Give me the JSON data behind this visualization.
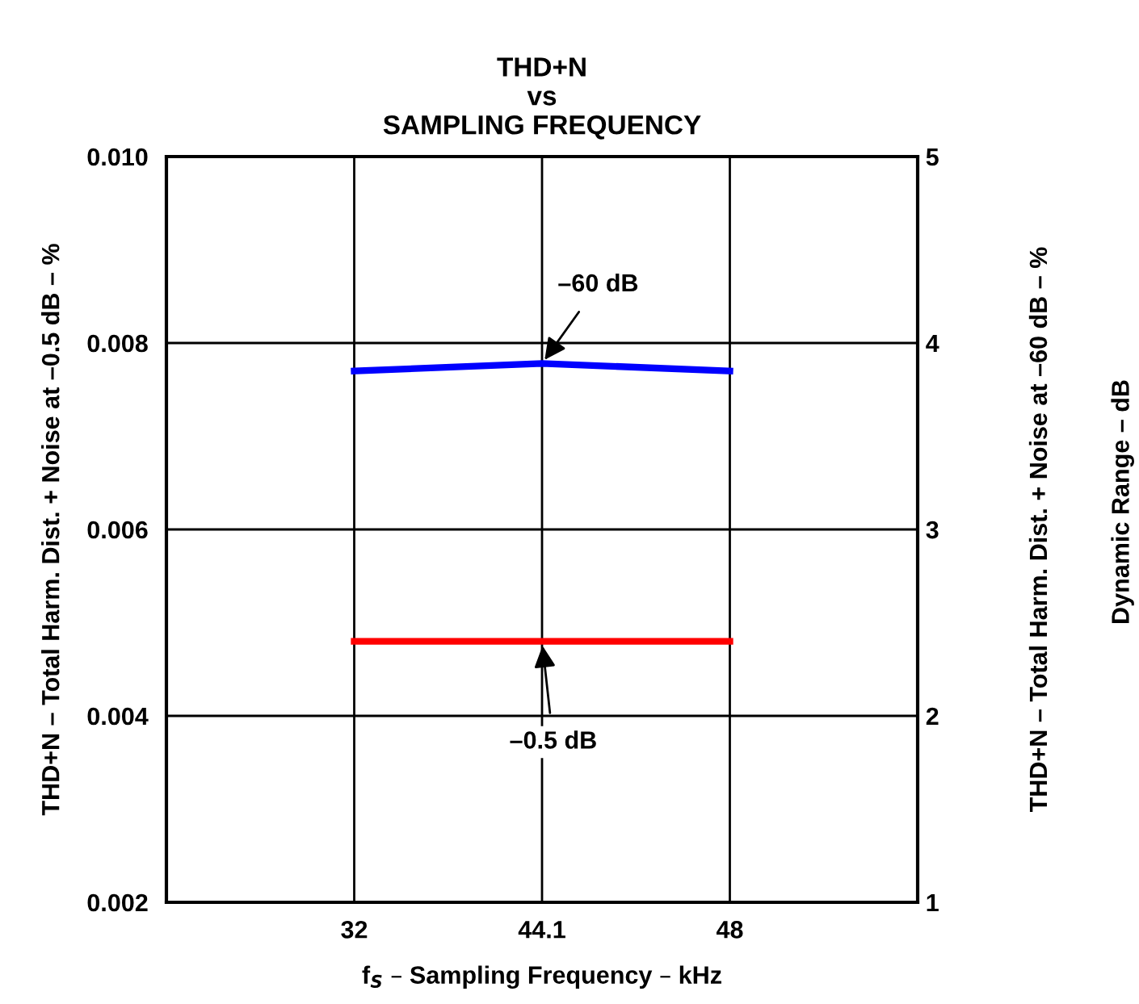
{
  "chart_data": {
    "type": "line",
    "title": "THD+N\nvs\nSAMPLING FREQUENCY",
    "xlabel": "f$_{S}$ – Sampling Frequency – kHz",
    "ylabel": "THD+N – Total Harm. Dist. + Noise at –0.5 dB – %",
    "y2label": "THD+N – Total Harm. Dist. + Noise at –60 dB – %",
    "categories": [
      "32",
      "44.1",
      "48"
    ],
    "series": [
      {
        "color": "#0000ff",
        "values": [
          0.0077,
          0.00778,
          0.0077
        ]
      },
      {
        "color": "#ff0000",
        "values": [
          0.0048,
          0.0048,
          0.0048
        ]
      }
    ],
    "ylim": [
      0.002,
      0.01
    ],
    "yticks": [
      0.002,
      0.004,
      0.006,
      0.008,
      {
        "value": 0.01,
        "label": "0.010"
      }
    ],
    "y2lim": [
      1,
      5
    ],
    "y2ticks": [
      1,
      2,
      3,
      4,
      5
    ],
    "annotations": [
      {
        "text": "–60 dB",
        "x": "44.1",
        "y": 0.00778
      },
      {
        "text": "–0.5 dB",
        "x": "44.1",
        "y": 0.0048
      },
      "Dynamic Range – dB"
    ],
    "grid": true,
    "legend": false,
    "marker": "none",
    "line_style": "solid"
  }
}
